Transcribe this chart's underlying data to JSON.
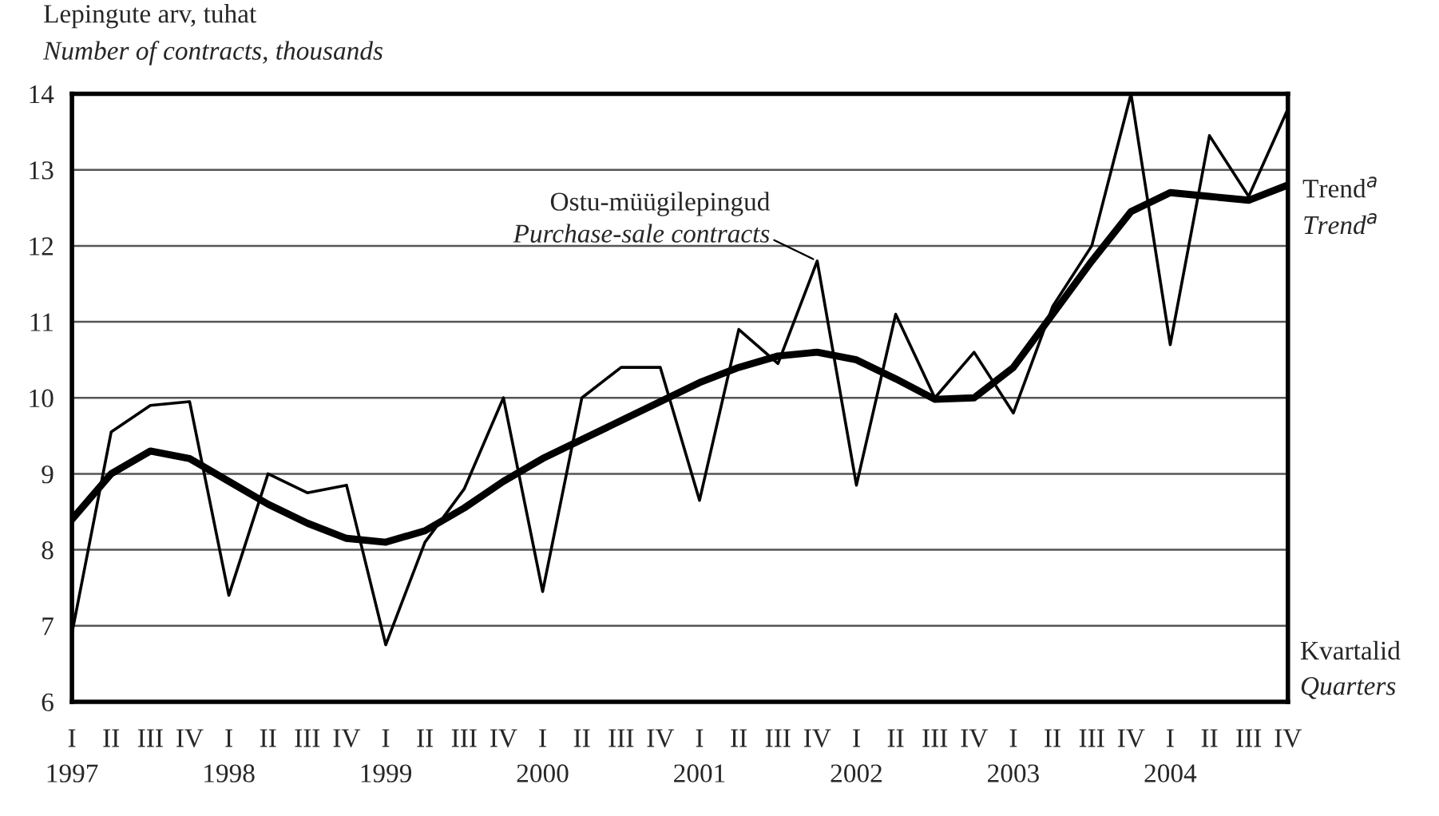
{
  "chart_data": {
    "type": "line",
    "ylabel": "Lepingute arv, tuhat\nNumber of contracts, thousands",
    "xlabel": "Kvartalid\nQuarters",
    "categories": [
      "I\n1997",
      "II",
      "III",
      "IV",
      "I\n1998",
      "II",
      "III",
      "IV",
      "I\n1999",
      "II",
      "III",
      "IV",
      "I\n2000",
      "II",
      "III",
      "IV",
      "I\n2001",
      "II",
      "III",
      "IV",
      "I\n2002",
      "II",
      "III",
      "IV",
      "I\n2003",
      "II",
      "III",
      "IV",
      "I\n2004",
      "II",
      "III",
      "IV"
    ],
    "series": [
      {
        "name": "Ostu-müügilepingud\nPurchase-sale contracts",
        "color": "#000000",
        "values": [
          6.9,
          9.55,
          9.9,
          9.95,
          7.4,
          9.0,
          8.75,
          8.85,
          6.75,
          8.1,
          8.8,
          10.0,
          7.45,
          10.0,
          10.4,
          10.4,
          8.65,
          10.9,
          10.45,
          11.8,
          8.85,
          11.1,
          10.0,
          10.6,
          9.8,
          11.2,
          12.0,
          14.0,
          10.7,
          13.45,
          12.65,
          13.8
        ]
      },
      {
        "name": "Trend$^{a}$\nTrend$^{a}$",
        "color": "#000000",
        "values": [
          8.4,
          9.0,
          9.3,
          9.2,
          8.9,
          8.6,
          8.35,
          8.15,
          8.1,
          8.25,
          8.55,
          8.9,
          9.2,
          9.45,
          9.7,
          9.95,
          10.2,
          10.4,
          10.55,
          10.6,
          10.5,
          10.25,
          9.98,
          10.0,
          10.4,
          11.1,
          11.8,
          12.45,
          12.7,
          12.65,
          12.6,
          12.8
        ]
      }
    ],
    "ylim": [
      6,
      14
    ],
    "yticks": [
      6,
      7,
      8,
      9,
      10,
      11,
      12,
      13,
      14
    ],
    "grid": "y",
    "legend": false
  }
}
